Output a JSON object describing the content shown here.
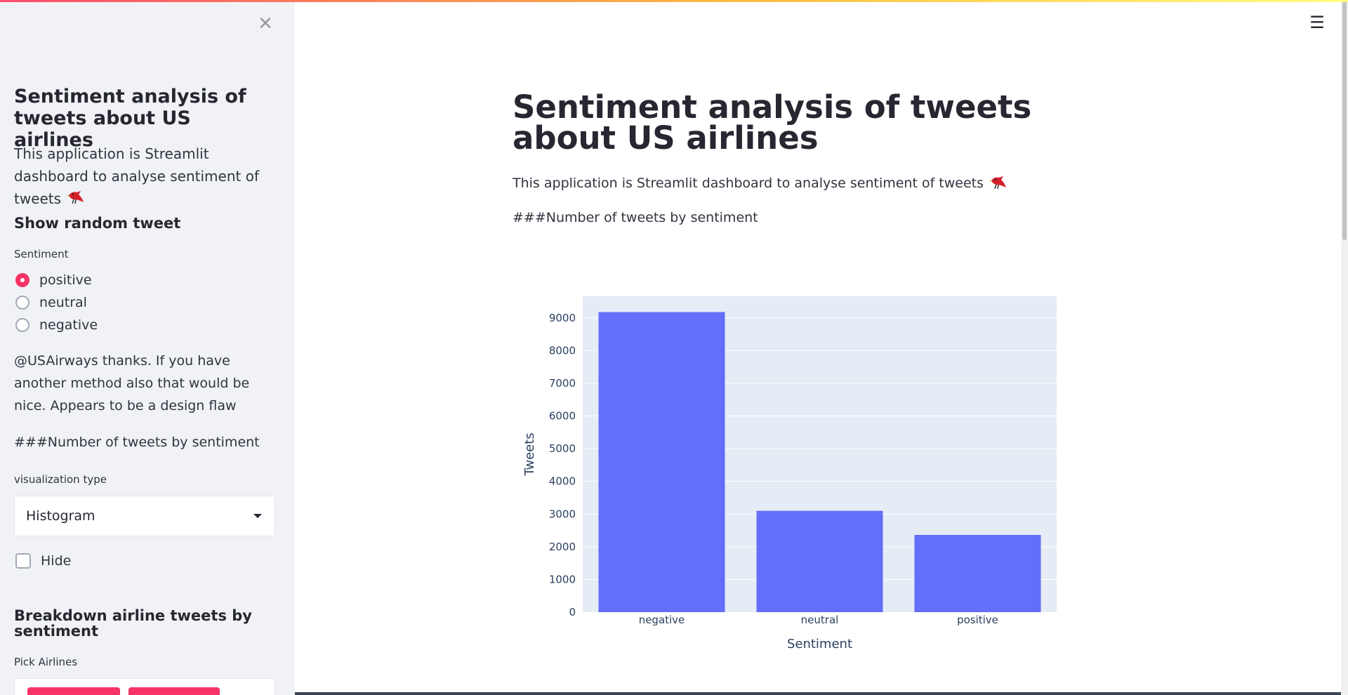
{
  "colors": {
    "accent": "#f63366",
    "bar": "#636efa",
    "plot_bg": "#e5ecf6",
    "sidebar_bg": "#f0f2f6"
  },
  "sidebar": {
    "close_icon": "close-icon",
    "title": "Sentiment analysis of tweets about US airlines",
    "description": "This application is Streamlit dashboard to analyse sentiment of tweets",
    "random_tweet_heading": "Show random tweet",
    "sentiment_label": "Sentiment",
    "sentiment_options": [
      {
        "label": "positive",
        "selected": true
      },
      {
        "label": "neutral",
        "selected": false
      },
      {
        "label": "negative",
        "selected": false
      }
    ],
    "random_tweet_text": "@USAirways thanks. If you have another method also that would be nice. Appears to be a design flaw",
    "tweets_by_sentiment_text": "###Number of tweets by sentiment",
    "viz_label": "visualization type",
    "viz_selected": "Histogram",
    "hide_label": "Hide",
    "hide_checked": false,
    "breakdown_heading": "Breakdown airline tweets by sentiment",
    "pick_airlines_label": "Pick Airlines"
  },
  "main": {
    "menu_icon": "hamburger-menu-icon",
    "title": "Sentiment analysis of tweets about US airlines",
    "description": "This application is Streamlit dashboard to analyse sentiment of tweets",
    "tweets_by_sentiment_text": "###Number of tweets by sentiment"
  },
  "chart_data": {
    "type": "bar",
    "categories": [
      "negative",
      "neutral",
      "positive"
    ],
    "values": [
      9178,
      3099,
      2363
    ],
    "title": "",
    "xlabel": "Sentiment",
    "ylabel": "Tweets",
    "ylim": [
      0,
      9661
    ],
    "yticks": [
      0,
      1000,
      2000,
      3000,
      4000,
      5000,
      6000,
      7000,
      8000,
      9000
    ],
    "grid": true
  }
}
